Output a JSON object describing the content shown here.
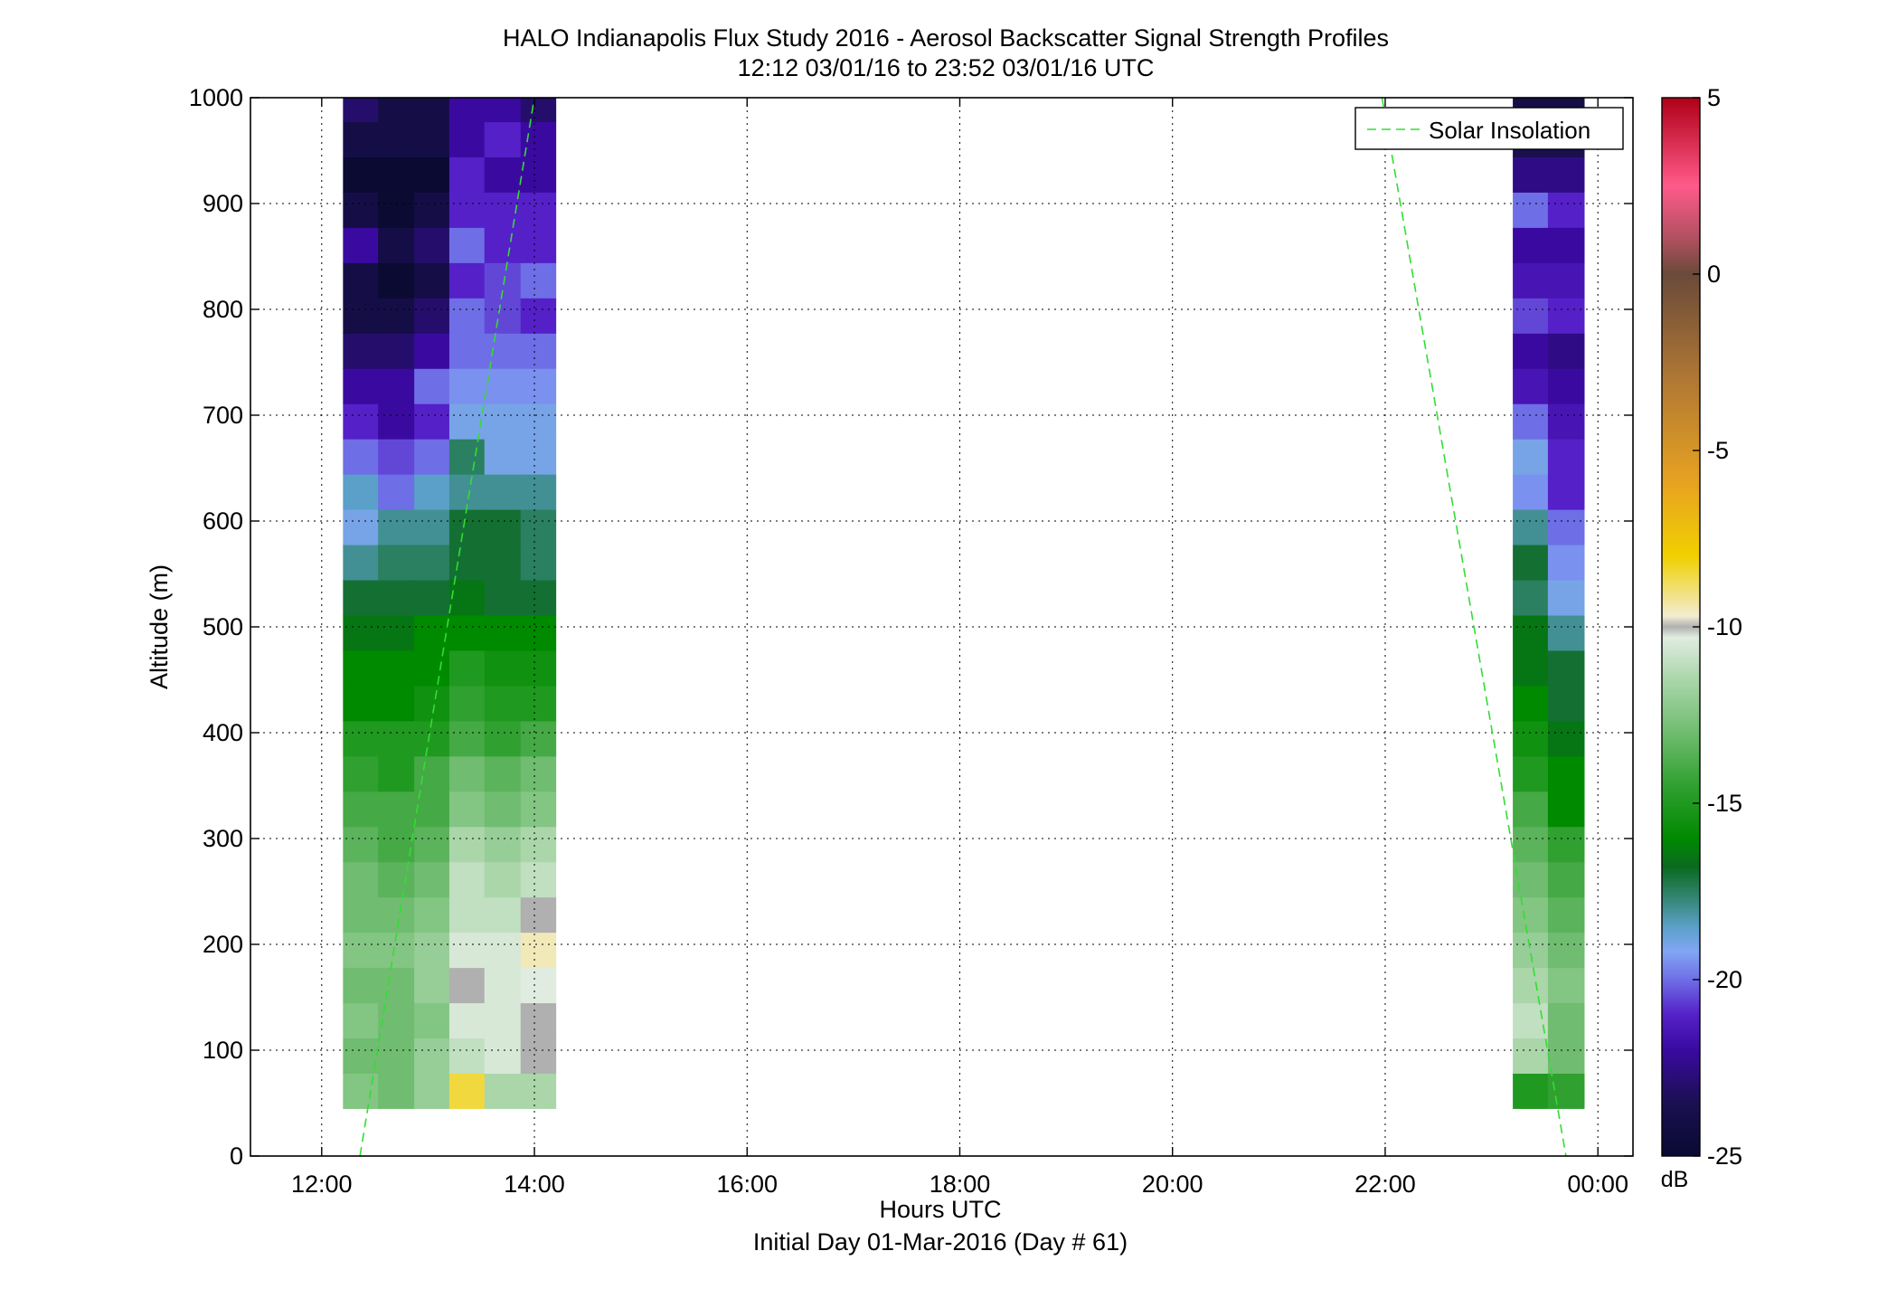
{
  "chart_data": {
    "type": "heatmap",
    "title": "HALO Indianapolis Flux Study 2016 - Aerosol Backscatter Signal Strength Profiles",
    "subtitle": "12:12 03/01/16 to 23:52 03/01/16  UTC",
    "xlabel": "Hours UTC",
    "xlabel2": "Initial Day 01-Mar-2016 (Day # 61)",
    "ylabel": "Altitude (m)",
    "xlim_hours": [
      11.33,
      24.33
    ],
    "ylim": [
      0,
      1000
    ],
    "x_ticks": [
      {
        "hour": 12,
        "label": "12:00"
      },
      {
        "hour": 14,
        "label": "14:00"
      },
      {
        "hour": 16,
        "label": "16:00"
      },
      {
        "hour": 18,
        "label": "18:00"
      },
      {
        "hour": 20,
        "label": "20:00"
      },
      {
        "hour": 22,
        "label": "22:00"
      },
      {
        "hour": 24,
        "label": "00:00"
      }
    ],
    "y_ticks": [
      {
        "value": 0,
        "label": "0"
      },
      {
        "value": 100,
        "label": "100"
      },
      {
        "value": 200,
        "label": "200"
      },
      {
        "value": 300,
        "label": "300"
      },
      {
        "value": 400,
        "label": "400"
      },
      {
        "value": 500,
        "label": "500"
      },
      {
        "value": 600,
        "label": "600"
      },
      {
        "value": 700,
        "label": "700"
      },
      {
        "value": 800,
        "label": "800"
      },
      {
        "value": 900,
        "label": "900"
      },
      {
        "value": 1000,
        "label": "1000"
      }
    ],
    "grid": true,
    "legend": {
      "position": "top-right",
      "entries": [
        {
          "name": "Solar Insolation",
          "color": "#33dd33",
          "style": "dashed"
        }
      ]
    },
    "colorbar": {
      "label": "dB",
      "range": [
        -25,
        5
      ],
      "ticks": [
        {
          "value": 5,
          "label": "5"
        },
        {
          "value": 0,
          "label": "0"
        },
        {
          "value": -5,
          "label": "-5"
        },
        {
          "value": -10,
          "label": "-10"
        },
        {
          "value": -15,
          "label": "-15"
        },
        {
          "value": -20,
          "label": "-20"
        },
        {
          "value": -25,
          "label": "-25"
        }
      ],
      "stops": [
        {
          "db": -25,
          "color": "#0a0a33"
        },
        {
          "db": -23.5,
          "color": "#1a1050"
        },
        {
          "db": -22,
          "color": "#3a0aa0"
        },
        {
          "db": -21,
          "color": "#5520c8"
        },
        {
          "db": -20,
          "color": "#6e6ee6"
        },
        {
          "db": -19.2,
          "color": "#82a6f4"
        },
        {
          "db": -18.5,
          "color": "#5aa0c8"
        },
        {
          "db": -17.5,
          "color": "#2a8060"
        },
        {
          "db": -16.8,
          "color": "#0a6a20"
        },
        {
          "db": -16,
          "color": "#008a00"
        },
        {
          "db": -14.5,
          "color": "#30a030"
        },
        {
          "db": -13,
          "color": "#70bc70"
        },
        {
          "db": -11.5,
          "color": "#aad6aa"
        },
        {
          "db": -10.3,
          "color": "#e0ece0"
        },
        {
          "db": -10,
          "color": "#b0b0b0"
        },
        {
          "db": -9.7,
          "color": "#f2ecd2"
        },
        {
          "db": -8,
          "color": "#f0d000"
        },
        {
          "db": -6,
          "color": "#e8a420"
        },
        {
          "db": -3,
          "color": "#b07834"
        },
        {
          "db": 0,
          "color": "#6a4a3a"
        },
        {
          "db": 1,
          "color": "#b05060"
        },
        {
          "db": 2.5,
          "color": "#ff5a8a"
        },
        {
          "db": 5,
          "color": "#b00018"
        }
      ]
    },
    "gates_m": {
      "start": 45,
      "step": 33.3,
      "count": 29
    },
    "profiles": [
      {
        "time": "12:12",
        "start_hour": 12.2,
        "end_hour": 12.53,
        "values_db": [
          -12.5,
          -13,
          -12.5,
          -13,
          -12.5,
          -13,
          -13,
          -13.5,
          -14,
          -14.5,
          -15,
          -16,
          -16,
          -16.5,
          -17,
          -18,
          -19,
          -18.5,
          -20,
          -21,
          -22,
          -23,
          -24,
          -24,
          -22,
          -24,
          -25,
          -24,
          -23
        ]
      },
      {
        "time": "12:32",
        "start_hour": 12.53,
        "end_hour": 12.87,
        "values_db": [
          -13,
          -13,
          -13,
          -13,
          -12.5,
          -13,
          -13.5,
          -14,
          -14,
          -15,
          -15,
          -16,
          -16,
          -16.5,
          -17,
          -17.5,
          -18,
          -20,
          -20.5,
          -22,
          -22,
          -23,
          -24,
          -25,
          -24,
          -25,
          -25,
          -24,
          -24
        ]
      },
      {
        "time": "12:52",
        "start_hour": 12.87,
        "end_hour": 13.2,
        "values_db": [
          -12,
          -12,
          -12.5,
          -12,
          -12,
          -12.5,
          -13,
          -13.5,
          -14,
          -14,
          -15,
          -15.5,
          -16,
          -16,
          -17,
          -17.5,
          -18,
          -18.5,
          -20,
          -21,
          -20,
          -22,
          -23,
          -24,
          -23,
          -24,
          -25,
          -24,
          -24
        ]
      },
      {
        "time": "13:12",
        "start_hour": 13.2,
        "end_hour": 13.53,
        "values_db": [
          -8.5,
          -11,
          -10.5,
          -10,
          -10.5,
          -11,
          -11,
          -11.5,
          -12.5,
          -13,
          -14,
          -14.5,
          -15,
          -16,
          -16.5,
          -17,
          -17,
          -18,
          -17.5,
          -19,
          -19.5,
          -20,
          -20,
          -21,
          -20,
          -21,
          -21,
          -22,
          -22
        ]
      },
      {
        "time": "13:32",
        "start_hour": 13.53,
        "end_hour": 13.87,
        "values_db": [
          -11.5,
          -10.5,
          -10.5,
          -10.5,
          -10.5,
          -11,
          -11.5,
          -12,
          -13,
          -13.5,
          -14.5,
          -15,
          -15.5,
          -16,
          -17,
          -17,
          -17,
          -18,
          -19,
          -19,
          -19.5,
          -20,
          -20.5,
          -20.5,
          -21,
          -21,
          -22,
          -21,
          -22
        ]
      },
      {
        "time": "13:52",
        "start_hour": 13.87,
        "end_hour": 14.2,
        "values_db": [
          -11.5,
          -10,
          -10,
          -10.3,
          -9.5,
          -10,
          -11,
          -11.5,
          -12.5,
          -13,
          -14,
          -15,
          -15.5,
          -16,
          -17,
          -17.5,
          -17.5,
          -18,
          -19,
          -19,
          -19.5,
          -20,
          -21,
          -20,
          -21,
          -21,
          -22,
          -22,
          -23
        ]
      },
      {
        "time": "23:12",
        "start_hour": 23.2,
        "end_hour": 23.53,
        "values_db": [
          -15,
          -11.5,
          -11,
          -11.5,
          -12,
          -12.5,
          -13,
          -13.5,
          -14,
          -15,
          -15.5,
          -16,
          -16.5,
          -16.5,
          -17.5,
          -17,
          -18,
          -19.5,
          -19,
          -20,
          -21.5,
          -22,
          -20.5,
          -21.5,
          -22,
          -20,
          -22.5,
          -23.5,
          -24
        ]
      },
      {
        "time": "23:32",
        "start_hour": 23.53,
        "end_hour": 23.87,
        "values_db": [
          -14.5,
          -13,
          -13,
          -12.5,
          -13,
          -13.5,
          -14,
          -14.5,
          -16,
          -16,
          -16.5,
          -17,
          -17,
          -18,
          -19,
          -19.5,
          -20,
          -21,
          -21,
          -21.5,
          -22,
          -22.5,
          -21,
          -21.5,
          -22,
          -21,
          -22.5,
          -23.5,
          -24
        ]
      }
    ],
    "solar_insolation": {
      "segments": [
        {
          "points": [
            [
              12.36,
              0
            ],
            [
              14.0,
              1000
            ]
          ]
        },
        {
          "points": [
            [
              21.97,
              1000
            ],
            [
              23.7,
              0
            ]
          ]
        }
      ]
    }
  }
}
